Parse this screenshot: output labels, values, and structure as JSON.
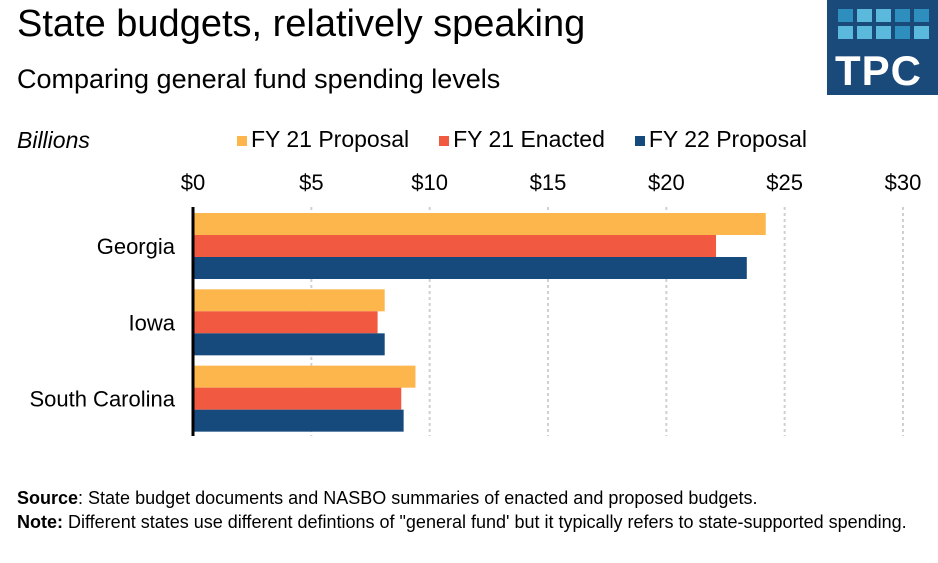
{
  "header": {
    "title": "State budgets, relatively speaking",
    "subtitle": "Comparing general fund spending levels",
    "logo_text": "TPC"
  },
  "chart_data": {
    "type": "bar",
    "orientation": "horizontal",
    "title": "State budgets, relatively speaking",
    "subtitle": "Comparing general fund spending levels",
    "units_label": "Billions",
    "categories": [
      "Georgia",
      "Iowa",
      "South Carolina"
    ],
    "series": [
      {
        "name": "FY 21 Proposal",
        "color": "#fcb64c",
        "values": [
          24.2,
          8.1,
          9.4
        ]
      },
      {
        "name": "FY 21 Enacted",
        "color": "#f15a40",
        "values": [
          22.1,
          7.8,
          8.8
        ]
      },
      {
        "name": "FY 22 Proposal",
        "color": "#174a7c",
        "values": [
          23.4,
          8.1,
          8.9
        ]
      }
    ],
    "xlim": [
      0,
      30
    ],
    "xticks": [
      0,
      5,
      10,
      15,
      20,
      25,
      30
    ],
    "xtick_labels": [
      "$0",
      "$5",
      "$10",
      "$15",
      "$20",
      "$25",
      "$30"
    ],
    "grid": "vertical dashed",
    "legend_position": "top"
  },
  "footer": {
    "source_label": "Source",
    "source_text": ": State budget documents and NASBO summaries of enacted and proposed budgets.",
    "note_label": "Note:",
    "note_text": " Different states use different defintions of \"general fund' but it typically refers to state-supported spending."
  }
}
